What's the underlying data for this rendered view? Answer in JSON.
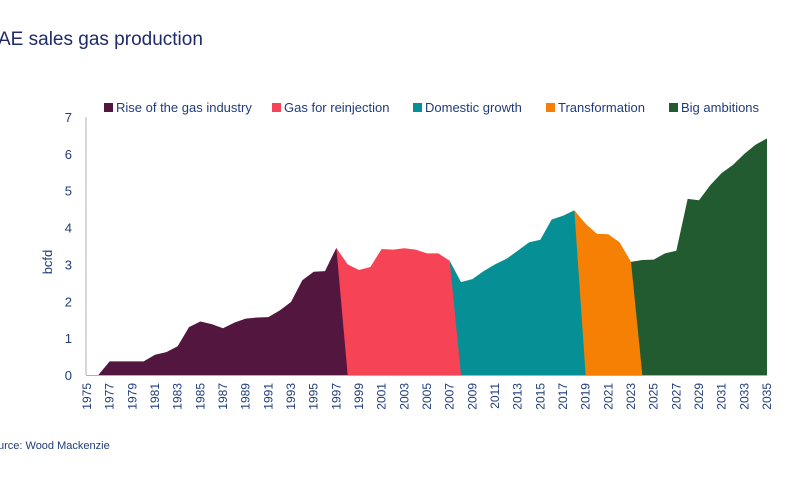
{
  "title": "AE sales gas production",
  "source": "urce: Wood Mackenzie",
  "chart_data": {
    "type": "area",
    "title": "AE sales gas production",
    "xlabel": "",
    "ylabel": "bcfd",
    "ylim": [
      0,
      7
    ],
    "yticks": [
      "0",
      "1",
      "2",
      "3",
      "4",
      "5",
      "6",
      "7"
    ],
    "xlim": [
      1975,
      2035
    ],
    "xticks": [
      "1975",
      "1977",
      "1979",
      "1981",
      "1983",
      "1985",
      "1987",
      "1989",
      "1991",
      "1993",
      "1995",
      "1997",
      "1999",
      "2001",
      "2003",
      "2005",
      "2007",
      "2009",
      "2011",
      "2013",
      "2015",
      "2017",
      "2019",
      "2021",
      "2023",
      "2025",
      "2027",
      "2029",
      "2031",
      "2033",
      "2035"
    ],
    "grid": false,
    "legend_position": "top",
    "series": [
      {
        "name": "Rise of the gas industry",
        "color": "#52163f",
        "x": [
          1976,
          1977,
          1978,
          1979,
          1980,
          1981,
          1982,
          1983,
          1984,
          1985,
          1986,
          1987,
          1988,
          1989,
          1990,
          1991,
          1992,
          1993,
          1994,
          1995,
          1996,
          1997
        ],
        "values": [
          0,
          0.37,
          0.37,
          0.37,
          0.37,
          0.55,
          0.62,
          0.78,
          1.3,
          1.45,
          1.38,
          1.27,
          1.42,
          1.53,
          1.56,
          1.57,
          1.75,
          1.98,
          2.57,
          2.8,
          2.82,
          3.45
        ]
      },
      {
        "name": "Gas for reinjection",
        "color": "#f64456",
        "x": [
          1997,
          1998,
          1999,
          2000,
          2001,
          2002,
          2003,
          2004,
          2005,
          2006,
          2007
        ],
        "values": [
          3.45,
          3.0,
          2.85,
          2.93,
          3.42,
          3.4,
          3.44,
          3.4,
          3.3,
          3.3,
          3.1
        ]
      },
      {
        "name": "Domestic growth",
        "color": "#068f95",
        "x": [
          2007,
          2008,
          2009,
          2010,
          2011,
          2012,
          2013,
          2014,
          2015,
          2016,
          2017,
          2018
        ],
        "values": [
          3.1,
          2.52,
          2.6,
          2.82,
          3.0,
          3.15,
          3.37,
          3.6,
          3.67,
          4.22,
          4.32,
          4.47
        ]
      },
      {
        "name": "Transformation",
        "color": "#f58004",
        "x": [
          2018,
          2019,
          2020,
          2021,
          2022,
          2023
        ],
        "values": [
          4.47,
          4.1,
          3.83,
          3.82,
          3.6,
          3.07
        ]
      },
      {
        "name": "Big ambitions",
        "color": "#215b2f",
        "x": [
          2023,
          2024,
          2025,
          2026,
          2027,
          2028,
          2029,
          2030,
          2031,
          2032,
          2033,
          2034,
          2035
        ],
        "values": [
          3.07,
          3.12,
          3.13,
          3.3,
          3.37,
          4.78,
          4.74,
          5.15,
          5.48,
          5.7,
          6.0,
          6.25,
          6.42
        ]
      }
    ]
  }
}
